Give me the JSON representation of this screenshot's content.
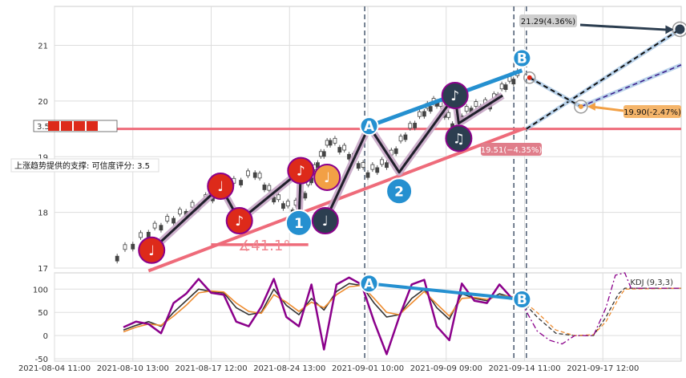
{
  "colors": {
    "red": "#dd2a1a",
    "orange": "#f2a045",
    "navy": "#2c3e50",
    "blue": "#2590d0",
    "pink": "#ee6b7a",
    "lightblue": "#a8c8e6",
    "purple": "#8b008b",
    "kdj_k": "#333333",
    "kdj_d": "#ee8c2f",
    "kdj_j": "#8b008b",
    "grid": "#dddddd",
    "dashed": "#4a5a70"
  },
  "chart_data": [
    {
      "type": "candlestick",
      "panel": "price",
      "ylim": [
        17,
        21.7
      ],
      "xlim": [
        0,
        100
      ],
      "yticks": [
        17,
        18,
        19,
        20,
        21
      ],
      "support_level": 19.5,
      "support_label": "3.5",
      "support_trend_label": "上涨趋势提供的支撑: 可信度评分: 3.5",
      "angle_label": "∡41.1°",
      "price_path": [
        {
          "x": 10,
          "y": 17.22
        },
        {
          "x": 15,
          "y": 17.65
        },
        {
          "x": 19,
          "y": 17.9
        },
        {
          "x": 23,
          "y": 18.15
        },
        {
          "x": 27.5,
          "y": 18.45
        },
        {
          "x": 32,
          "y": 18.72
        },
        {
          "x": 35,
          "y": 18.28
        },
        {
          "x": 38,
          "y": 18.05
        },
        {
          "x": 40,
          "y": 18.35
        },
        {
          "x": 42,
          "y": 18.9
        },
        {
          "x": 44,
          "y": 19.3
        },
        {
          "x": 47,
          "y": 19.05
        },
        {
          "x": 50,
          "y": 18.72
        },
        {
          "x": 53,
          "y": 18.9
        },
        {
          "x": 56,
          "y": 19.4
        },
        {
          "x": 59,
          "y": 19.82
        },
        {
          "x": 61,
          "y": 20.0
        },
        {
          "x": 63.5,
          "y": 19.6
        },
        {
          "x": 66.5,
          "y": 19.88
        },
        {
          "x": 69.5,
          "y": 19.95
        },
        {
          "x": 72,
          "y": 20.3
        },
        {
          "x": 74.5,
          "y": 20.5
        }
      ],
      "pattern_points": [
        {
          "label": "♩",
          "x": 15.5,
          "y": 17.32,
          "color": "red"
        },
        {
          "label": "♩",
          "x": 26.5,
          "y": 18.47,
          "color": "red"
        },
        {
          "label": "♪",
          "x": 29.5,
          "y": 17.85,
          "color": "red"
        },
        {
          "label": "♪",
          "x": 39.3,
          "y": 18.75,
          "color": "red"
        },
        {
          "label": "♩",
          "x": 43.5,
          "y": 18.63,
          "color": "orange"
        },
        {
          "label": "1",
          "x": 39.0,
          "y": 17.81,
          "color": "blue"
        },
        {
          "label": "♩",
          "x": 43.2,
          "y": 17.85,
          "color": "navy"
        },
        {
          "label": "A",
          "x": 50.2,
          "y": 19.55,
          "color": "blue"
        },
        {
          "label": "2",
          "x": 55.0,
          "y": 18.38,
          "color": "blue"
        },
        {
          "label": "♪",
          "x": 63.9,
          "y": 20.1,
          "color": "navy"
        },
        {
          "label": "♫",
          "x": 64.5,
          "y": 19.33,
          "color": "navy"
        },
        {
          "label": "B",
          "x": 74.6,
          "y": 20.77,
          "color": "blue"
        }
      ],
      "projection": {
        "start": {
          "x": 75.8,
          "y": 20.42
        },
        "mid": {
          "x": 84.0,
          "y": 19.9
        },
        "target_high": {
          "x": 99.8,
          "y": 21.29
        },
        "upper_channel_end": {
          "x": 100,
          "y": 20.65
        },
        "label_high": "21.29(4.36%)",
        "label_mid": "19.90(-2.47%)",
        "label_low": "19.51(−4.35%)"
      },
      "vlines": [
        49.5,
        73.3,
        75.3
      ]
    },
    {
      "type": "line",
      "panel": "indicator",
      "name": "KDJ (9,3,3)",
      "ylim": [
        -55,
        135
      ],
      "yticks": [
        -50,
        0,
        50,
        100
      ],
      "series": [
        {
          "name": "K",
          "color": "kdj_k",
          "points": [
            [
              11,
              12
            ],
            [
              13,
              22
            ],
            [
              15,
              30
            ],
            [
              17,
              20
            ],
            [
              19,
              50
            ],
            [
              21,
              75
            ],
            [
              23,
              100
            ],
            [
              25,
              95
            ],
            [
              27,
              92
            ],
            [
              29,
              60
            ],
            [
              31,
              45
            ],
            [
              33,
              50
            ],
            [
              35,
              100
            ],
            [
              37,
              65
            ],
            [
              39,
              45
            ],
            [
              41,
              80
            ],
            [
              43,
              55
            ],
            [
              45,
              95
            ],
            [
              47,
              112
            ],
            [
              49,
              108
            ],
            [
              51,
              70
            ],
            [
              53,
              40
            ],
            [
              55,
              45
            ],
            [
              57,
              80
            ],
            [
              59,
              100
            ],
            [
              61,
              60
            ],
            [
              63,
              35
            ],
            [
              65,
              90
            ],
            [
              67,
              80
            ],
            [
              69,
              75
            ],
            [
              71,
              90
            ],
            [
              73,
              82
            ],
            [
              74.5,
              77
            ]
          ]
        },
        {
          "name": "D",
          "color": "kdj_d",
          "points": [
            [
              11,
              8
            ],
            [
              13,
              18
            ],
            [
              15,
              25
            ],
            [
              17,
              22
            ],
            [
              19,
              42
            ],
            [
              21,
              65
            ],
            [
              23,
              92
            ],
            [
              25,
              96
            ],
            [
              27,
              94
            ],
            [
              29,
              70
            ],
            [
              31,
              52
            ],
            [
              33,
              48
            ],
            [
              35,
              88
            ],
            [
              37,
              72
            ],
            [
              39,
              52
            ],
            [
              41,
              72
            ],
            [
              43,
              60
            ],
            [
              45,
              88
            ],
            [
              47,
              105
            ],
            [
              49,
              108
            ],
            [
              51,
              80
            ],
            [
              53,
              50
            ],
            [
              55,
              45
            ],
            [
              57,
              70
            ],
            [
              59,
              95
            ],
            [
              61,
              68
            ],
            [
              63,
              42
            ],
            [
              65,
              80
            ],
            [
              67,
              82
            ],
            [
              69,
              78
            ],
            [
              71,
              86
            ],
            [
              73,
              84
            ],
            [
              74.5,
              78
            ]
          ]
        },
        {
          "name": "J",
          "color": "kdj_j",
          "points": [
            [
              11,
              18
            ],
            [
              13,
              30
            ],
            [
              15,
              25
            ],
            [
              17,
              5
            ],
            [
              19,
              70
            ],
            [
              21,
              90
            ],
            [
              23,
              122
            ],
            [
              25,
              92
            ],
            [
              27,
              88
            ],
            [
              29,
              30
            ],
            [
              31,
              20
            ],
            [
              33,
              62
            ],
            [
              35,
              122
            ],
            [
              37,
              40
            ],
            [
              39,
              20
            ],
            [
              41,
              110
            ],
            [
              43,
              -30
            ],
            [
              45,
              110
            ],
            [
              47,
              125
            ],
            [
              49,
              110
            ],
            [
              51,
              30
            ],
            [
              53,
              -40
            ],
            [
              55,
              40
            ],
            [
              57,
              110
            ],
            [
              59,
              120
            ],
            [
              61,
              20
            ],
            [
              63,
              -10
            ],
            [
              65,
              112
            ],
            [
              67,
              75
            ],
            [
              69,
              70
            ],
            [
              71,
              110
            ],
            [
              73,
              80
            ],
            [
              74.5,
              72
            ]
          ]
        }
      ],
      "projection_series": [
        {
          "name": "K",
          "color": "kdj_k",
          "points": [
            [
              74.5,
              77
            ],
            [
              77,
              40
            ],
            [
              80,
              5
            ],
            [
              83,
              0
            ],
            [
              86,
              0
            ],
            [
              88,
              40
            ],
            [
              90,
              90
            ],
            [
              91,
              102
            ],
            [
              100,
              102
            ]
          ]
        },
        {
          "name": "D",
          "color": "kdj_d",
          "points": [
            [
              74.5,
              78
            ],
            [
              77,
              50
            ],
            [
              80,
              12
            ],
            [
              83,
              0
            ],
            [
              86,
              2
            ],
            [
              88,
              30
            ],
            [
              90,
              80
            ],
            [
              91,
              100
            ],
            [
              100,
              102
            ]
          ]
        },
        {
          "name": "J",
          "color": "kdj_j",
          "points": [
            [
              74.5,
              72
            ],
            [
              77,
              10
            ],
            [
              79,
              -10
            ],
            [
              81,
              -18
            ],
            [
              83,
              0
            ],
            [
              86,
              0
            ],
            [
              88,
              60
            ],
            [
              89.5,
              130
            ],
            [
              91,
              135
            ],
            [
              92,
              102
            ],
            [
              100,
              102
            ]
          ]
        }
      ],
      "divergence": [
        {
          "label": "A",
          "x": 50.2,
          "y": 112
        },
        {
          "label": "B",
          "x": 74.6,
          "y": 78
        }
      ]
    }
  ],
  "x_axis": {
    "ticks": [
      {
        "x": 0,
        "label": "2021-08-04 11:00"
      },
      {
        "x": 12.5,
        "label": "2021-08-10 13:00"
      },
      {
        "x": 25,
        "label": "2021-08-17 12:00"
      },
      {
        "x": 37.5,
        "label": "2021-08-24 13:00"
      },
      {
        "x": 50,
        "label": "2021-09-01 10:00"
      },
      {
        "x": 62.5,
        "label": "2021-09-09 09:00"
      },
      {
        "x": 75,
        "label": "2021-09-14 11:00"
      },
      {
        "x": 87.5,
        "label": "2021-09-17 12:00"
      }
    ]
  }
}
